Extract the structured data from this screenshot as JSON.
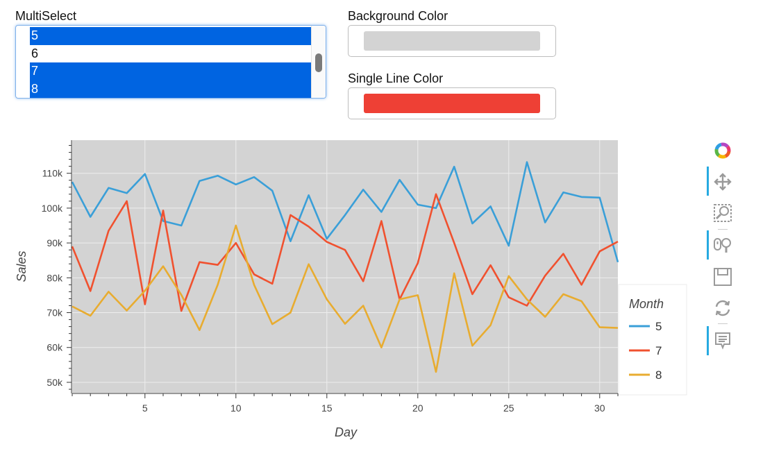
{
  "multiselect": {
    "label": "MultiSelect",
    "options": [
      {
        "text": "5",
        "selected": true
      },
      {
        "text": "6",
        "selected": false
      },
      {
        "text": "7",
        "selected": true
      },
      {
        "text": "8",
        "selected": true
      }
    ]
  },
  "background_color": {
    "label": "Background Color",
    "value": "#d3d3d3"
  },
  "single_line_color": {
    "label": "Single Line Color",
    "value": "#ee4035"
  },
  "toolbar": {
    "tools": [
      "bokeh-logo-icon",
      "pan-icon",
      "box-zoom-icon",
      "wheel-zoom-icon",
      "save-icon",
      "reset-icon",
      "hover-icon"
    ]
  },
  "chart_data": {
    "type": "line",
    "xlabel": "Day",
    "ylabel": "Sales",
    "xlim": [
      1,
      31
    ],
    "ylim": [
      47000,
      119500
    ],
    "xticks": [
      5,
      10,
      15,
      20,
      25,
      30
    ],
    "yticks": [
      50000,
      60000,
      70000,
      80000,
      90000,
      100000,
      110000
    ],
    "ytick_labels": [
      "50k",
      "60k",
      "70k",
      "80k",
      "90k",
      "100k",
      "110k"
    ],
    "background": "#d3d3d3",
    "grid": true,
    "legend": {
      "title": "Month",
      "placement": "right"
    },
    "x": [
      1,
      2,
      3,
      4,
      5,
      6,
      7,
      8,
      9,
      10,
      11,
      12,
      13,
      14,
      15,
      16,
      17,
      18,
      19,
      20,
      21,
      22,
      23,
      24,
      25,
      26,
      27,
      28,
      29,
      30,
      31
    ],
    "series": [
      {
        "name": "5",
        "color": "#3a9fd8",
        "values": [
          107500,
          97500,
          105800,
          104300,
          109800,
          96300,
          95000,
          107800,
          109300,
          106800,
          108900,
          105000,
          90500,
          103700,
          91200,
          98000,
          105300,
          98900,
          108100,
          101000,
          100000,
          111900,
          95600,
          100500,
          89200,
          113200,
          95900,
          104500,
          103200,
          103000,
          84500
        ]
      },
      {
        "name": "7",
        "color": "#f0512f",
        "values": [
          89000,
          76200,
          93500,
          102000,
          72400,
          99300,
          70500,
          84500,
          83700,
          90000,
          81000,
          78300,
          98000,
          94700,
          90300,
          88000,
          79000,
          96300,
          73800,
          84200,
          104000,
          90000,
          75300,
          83600,
          74400,
          72000,
          80600,
          86900,
          78000,
          87600,
          90400
        ]
      },
      {
        "name": "8",
        "color": "#e8ac30",
        "values": [
          71800,
          69100,
          76000,
          70600,
          76300,
          83300,
          75100,
          65000,
          78000,
          95000,
          78000,
          66700,
          70000,
          83900,
          73800,
          66800,
          72000,
          60000,
          73800,
          75000,
          53000,
          81300,
          60500,
          66400,
          80500,
          73800,
          68800,
          75300,
          73300,
          65800,
          65600
        ]
      }
    ]
  }
}
